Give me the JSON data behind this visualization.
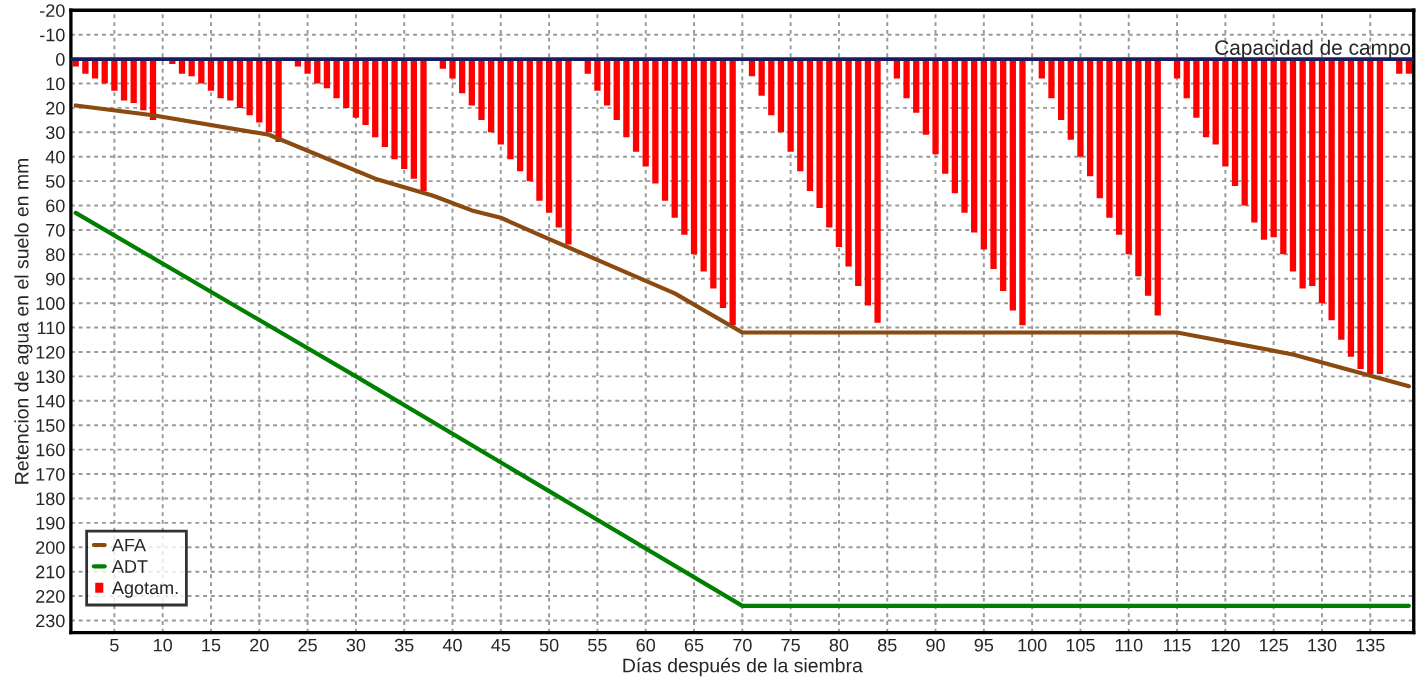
{
  "chart_data": {
    "type": "bar",
    "xlabel": "Días después de la siembra",
    "ylabel": "Retencion de agua en el suelo en mm",
    "xlim": [
      0.5,
      139.5
    ],
    "ylim": [
      235,
      -20
    ],
    "xticks": [
      5,
      10,
      15,
      20,
      25,
      30,
      35,
      40,
      45,
      50,
      55,
      60,
      65,
      70,
      75,
      80,
      85,
      90,
      95,
      100,
      105,
      110,
      115,
      120,
      125,
      130,
      135
    ],
    "yticks": [
      -20,
      -10,
      0,
      10,
      20,
      30,
      40,
      50,
      60,
      70,
      80,
      90,
      100,
      110,
      120,
      130,
      140,
      150,
      160,
      170,
      180,
      190,
      200,
      210,
      220,
      230
    ],
    "grid": true,
    "legend": "bottom left",
    "ref_lines": [
      {
        "axis": "y",
        "value": 0,
        "label": "Capacidad de campo",
        "color": "#1a1a5e",
        "line_style": "solid"
      }
    ],
    "series": [
      {
        "name": "AFA",
        "type": "line",
        "color": "#8b4a0f",
        "x": [
          1,
          9,
          21,
          32,
          38,
          42,
          45,
          49,
          56,
          63,
          70,
          115,
          127,
          139
        ],
        "values": [
          19,
          23,
          31,
          49,
          56,
          62,
          65,
          72,
          84,
          96,
          112,
          112,
          121,
          134
        ]
      },
      {
        "name": "ADT",
        "type": "line",
        "color": "#008000",
        "x": [
          1,
          30,
          50,
          70,
          139
        ],
        "values": [
          63,
          130,
          177,
          224,
          224
        ]
      },
      {
        "name": "Agotam.",
        "color": "#ff0000",
        "x": [
          1,
          2,
          3,
          4,
          5,
          6,
          7,
          8,
          9,
          10,
          11,
          12,
          13,
          14,
          15,
          16,
          17,
          18,
          19,
          20,
          21,
          22,
          23,
          24,
          25,
          26,
          27,
          28,
          29,
          30,
          31,
          32,
          33,
          34,
          35,
          36,
          37,
          38,
          39,
          40,
          41,
          42,
          43,
          44,
          45,
          46,
          47,
          48,
          49,
          50,
          51,
          52,
          53,
          54,
          55,
          56,
          57,
          58,
          59,
          60,
          61,
          62,
          63,
          64,
          65,
          66,
          67,
          68,
          69,
          70,
          71,
          72,
          73,
          74,
          75,
          76,
          77,
          78,
          79,
          80,
          81,
          82,
          83,
          84,
          85,
          86,
          87,
          88,
          89,
          90,
          91,
          92,
          93,
          94,
          95,
          96,
          97,
          98,
          99,
          100,
          101,
          102,
          103,
          104,
          105,
          106,
          107,
          108,
          109,
          110,
          111,
          112,
          113,
          114,
          115,
          116,
          117,
          118,
          119,
          120,
          121,
          122,
          123,
          124,
          125,
          126,
          127,
          128,
          129,
          130,
          131,
          132,
          133,
          134,
          135,
          136,
          137,
          138,
          139
        ],
        "values": [
          3,
          6,
          8,
          10,
          13,
          17,
          18,
          21,
          25,
          0,
          2,
          6,
          7,
          10,
          13,
          16,
          17,
          20,
          23,
          26,
          30,
          34,
          0,
          3,
          6,
          10,
          12,
          16,
          20,
          24,
          27,
          32,
          36,
          41,
          45,
          49,
          54,
          0,
          4,
          8,
          14,
          19,
          25,
          30,
          35,
          41,
          46,
          50,
          58,
          63,
          69,
          76,
          0,
          6,
          13,
          19,
          25,
          32,
          38,
          44,
          51,
          58,
          65,
          72,
          80,
          87,
          94,
          102,
          109,
          0,
          7,
          15,
          23,
          30,
          38,
          46,
          54,
          61,
          69,
          77,
          85,
          93,
          101,
          108,
          0,
          8,
          16,
          22,
          31,
          39,
          47,
          55,
          63,
          71,
          78,
          86,
          95,
          103,
          109,
          0,
          8,
          16,
          25,
          33,
          40,
          48,
          57,
          65,
          72,
          80,
          89,
          97,
          105,
          0,
          8,
          16,
          24,
          32,
          35,
          44,
          52,
          60,
          67,
          74,
          73,
          80,
          87,
          94,
          93,
          100,
          107,
          115,
          122,
          127,
          129,
          129,
          0,
          6,
          6
        ]
      }
    ]
  }
}
